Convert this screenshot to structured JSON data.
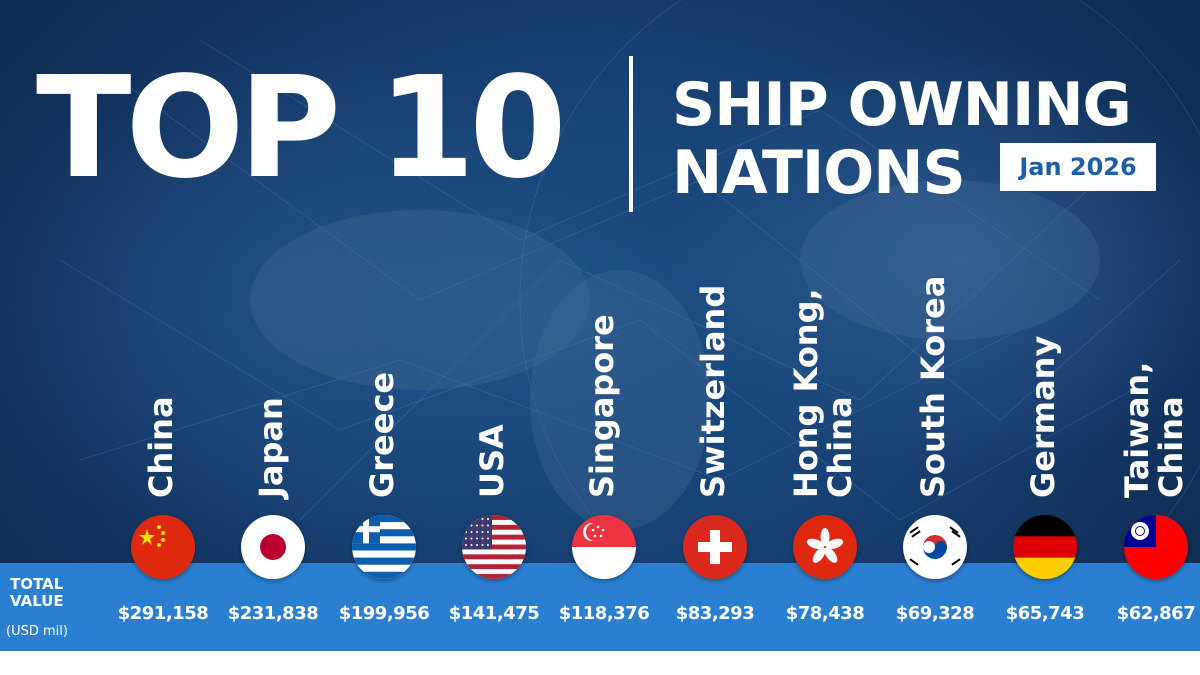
{
  "header": {
    "title_main": "TOP 10",
    "title_line1": "SHIP OWNING",
    "title_line2": "NATIONS",
    "date_badge": "Jan 2026"
  },
  "footer": {
    "total_label_line1": "TOTAL",
    "total_label_line2": "VALUE",
    "total_unit": "(USD mil)"
  },
  "colors": {
    "background": "#163f6f",
    "band": "#2a7fd0",
    "badge_text": "#1b5fa8"
  },
  "chart_data": {
    "type": "table",
    "title": "TOP 10 SHIP OWNING NATIONS",
    "date": "Jan 2026",
    "value_label": "TOTAL VALUE (USD mil)",
    "categories": [
      "China",
      "Japan",
      "Greece",
      "USA",
      "Singapore",
      "Switzerland",
      "Hong Kong,\nChina",
      "South Korea",
      "Germany",
      "Taiwan,\nChina"
    ],
    "values": [
      291158,
      231838,
      199956,
      141475,
      118376,
      83293,
      78438,
      69328,
      65743,
      62867
    ],
    "value_labels": [
      "$291,158",
      "$231,838",
      "$199,956",
      "$141,475",
      "$118,376",
      "$83,293",
      "$78,438",
      "$69,328",
      "$65,743",
      "$62,867"
    ],
    "flags": [
      "china-flag",
      "japan-flag",
      "greece-flag",
      "usa-flag",
      "singapore-flag",
      "switzerland-flag",
      "hong-kong-flag",
      "south-korea-flag",
      "germany-flag",
      "taiwan-flag"
    ]
  }
}
